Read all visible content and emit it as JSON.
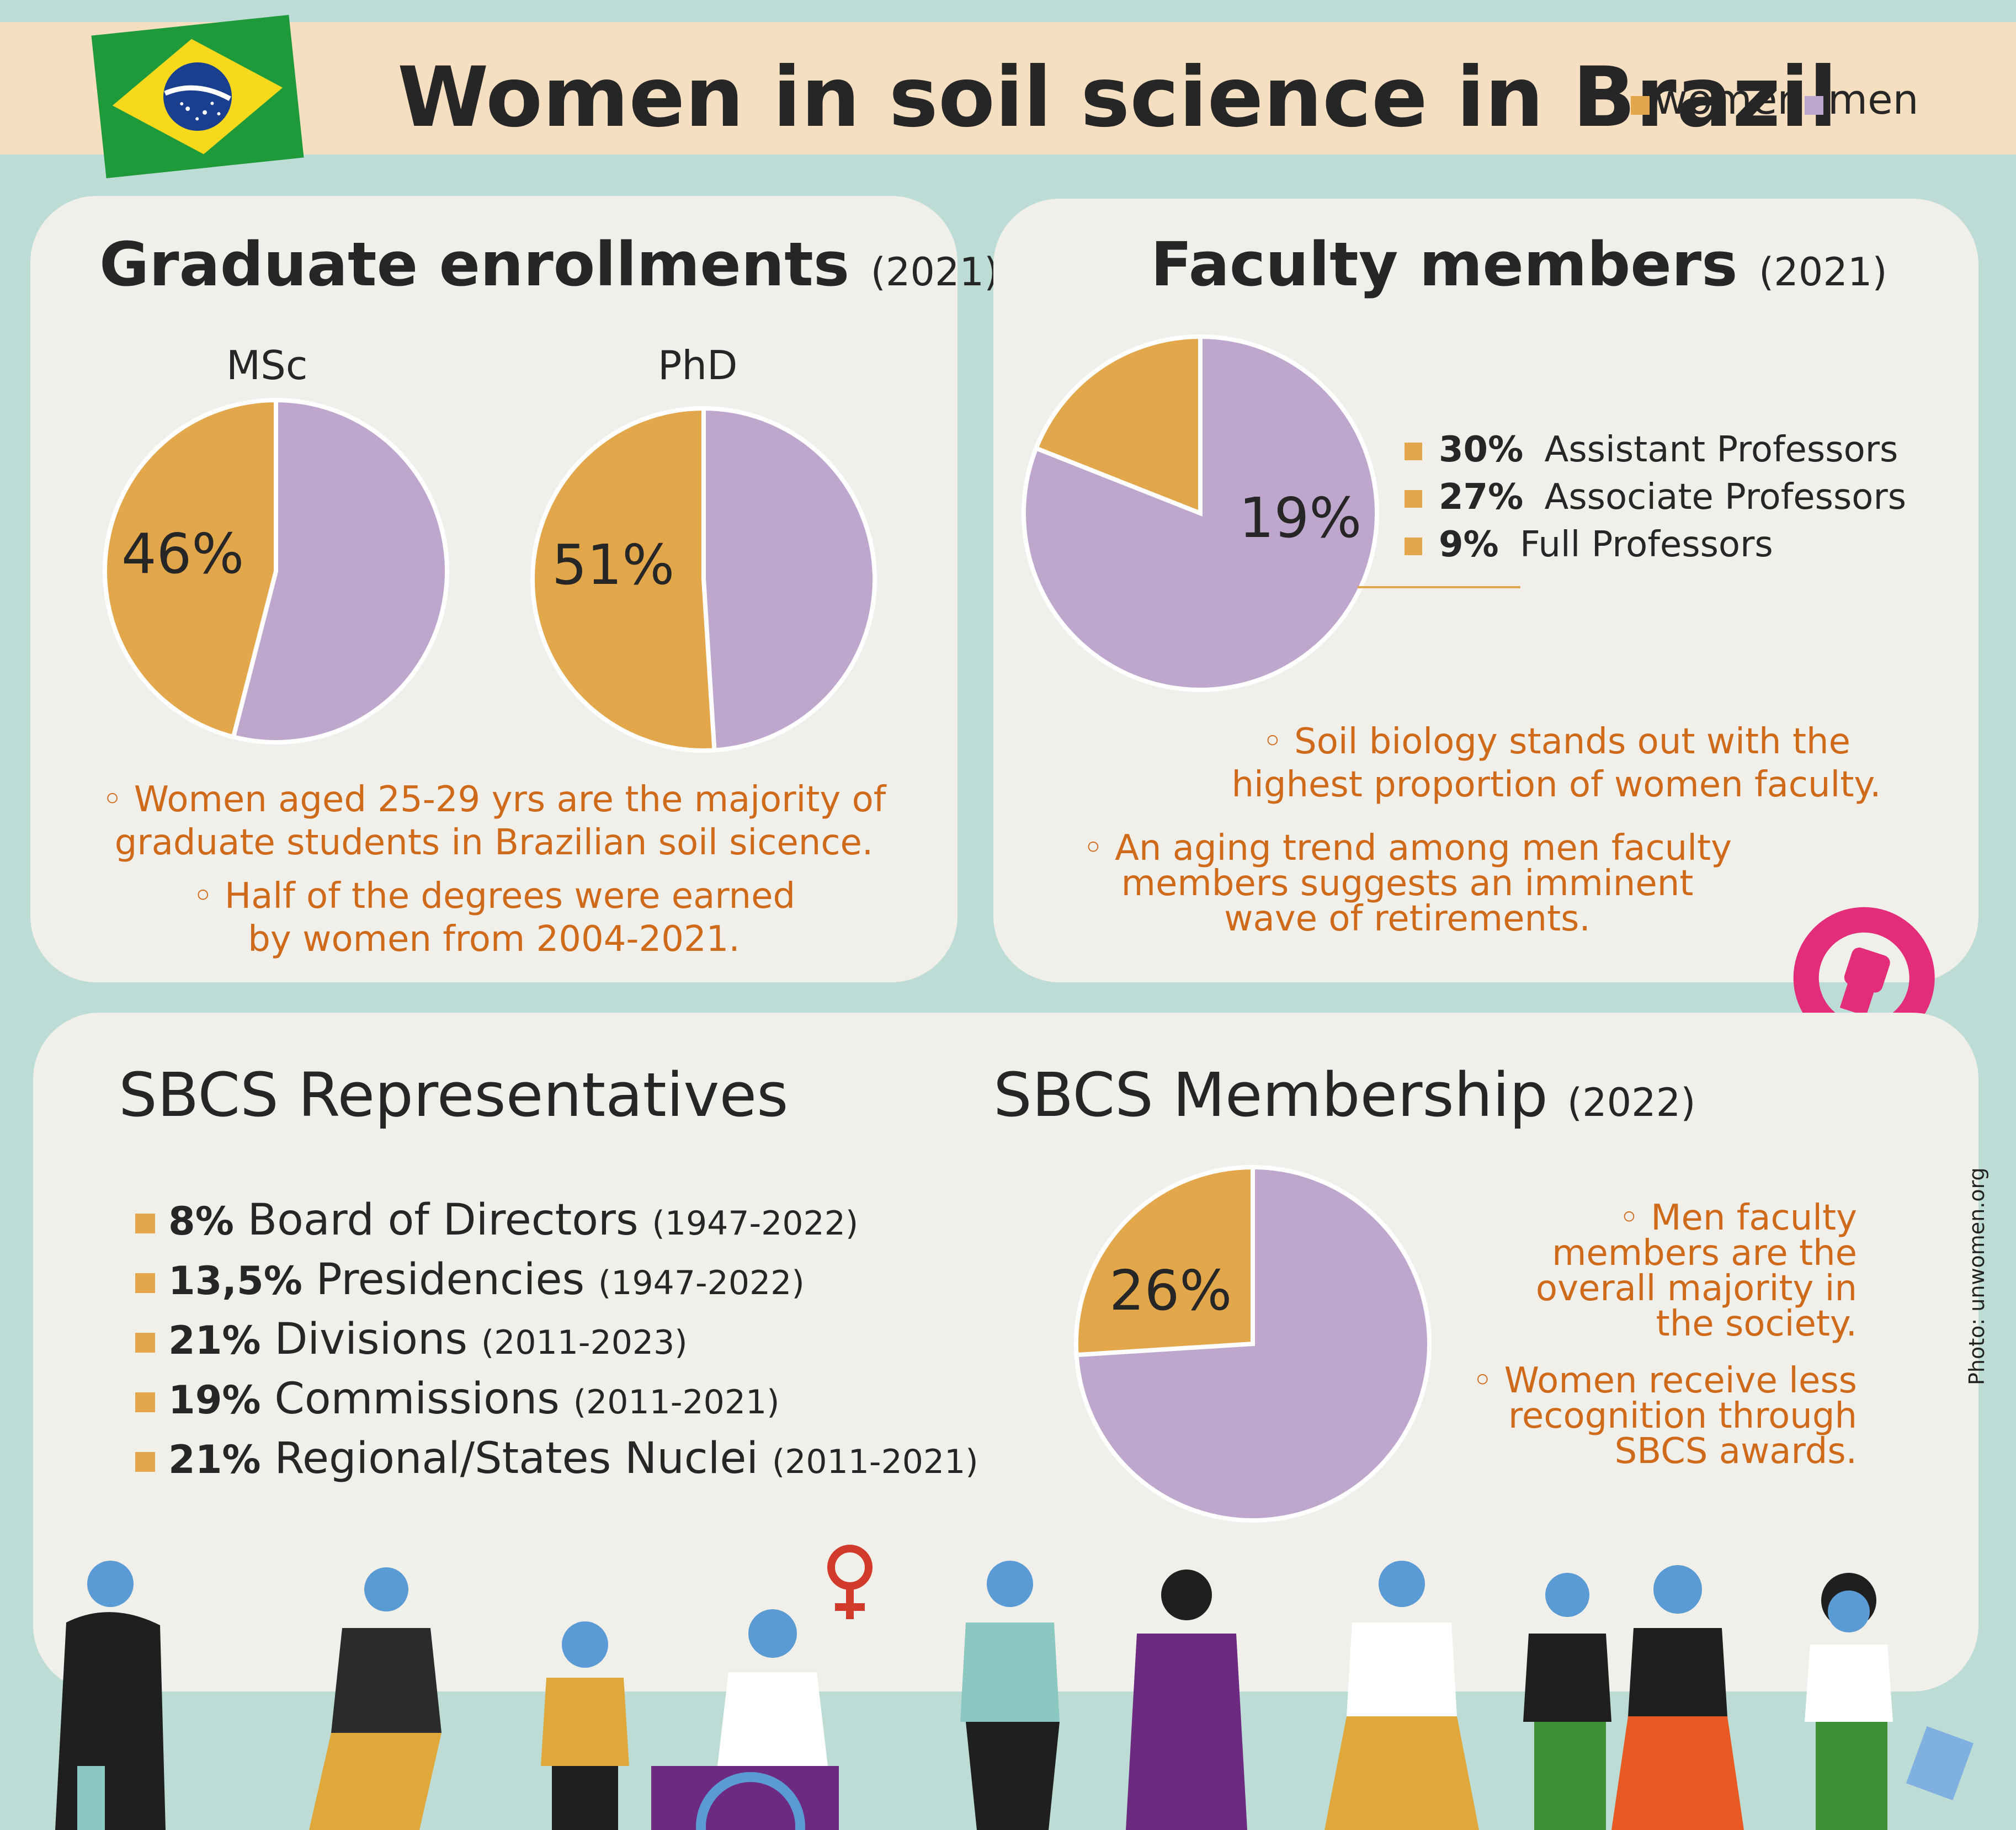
{
  "title": "Women in soil science in Brazil",
  "legend": {
    "women": "women",
    "men": "men"
  },
  "colors": {
    "women": "#e2a74b",
    "men": "#bea6cc",
    "note": "#cf6a1a",
    "background": "#bcdcd5",
    "banner": "#f5dfc0",
    "card": "#f0efe9",
    "venus": "#e32c7a"
  },
  "graduate": {
    "title": "Graduate enrollments",
    "year": "(2021)",
    "msc_label": "MSc",
    "phd_label": "PhD",
    "msc_pct_label": "46%",
    "phd_pct_label": "51%",
    "note1_line1": "◦ Women aged 25-29 yrs are the majority of",
    "note1_line2": "graduate students in Brazilian soil sicence.",
    "note2_line1": "◦ Half of the degrees were earned",
    "note2_line2": "by women from 2004-2021."
  },
  "faculty": {
    "title": "Faculty members",
    "year": "(2021)",
    "pct_label": "19%",
    "breakdown": [
      {
        "pct": "30%",
        "label": "Assistant Professors"
      },
      {
        "pct": "27%",
        "label": "Associate Professors"
      },
      {
        "pct": "9%",
        "label": "Full Professors"
      }
    ],
    "note1_line1": "◦ Soil biology stands out with the",
    "note1_line2": "highest proportion of women faculty.",
    "note2_line1": "◦ An aging trend among men faculty",
    "note2_line2": "members suggests an imminent",
    "note2_line3": "wave of retirements."
  },
  "representatives": {
    "title": "SBCS Representatives",
    "items": [
      {
        "pct": "8%",
        "label": "Board of Directors",
        "years": "(1947-2022)"
      },
      {
        "pct": "13,5%",
        "label": "Presidencies",
        "years": "(1947-2022)"
      },
      {
        "pct": "21%",
        "label": "Divisions",
        "years": "(2011-2023)"
      },
      {
        "pct": "19%",
        "label": "Commissions",
        "years": "(2011-2021)"
      },
      {
        "pct": "21%",
        "label": "Regional/States Nuclei",
        "years": "(2011-2021)"
      }
    ]
  },
  "membership": {
    "title": "SBCS Membership",
    "year": "(2022)",
    "pct_label": "26%",
    "note1_line1": "◦ Men faculty",
    "note1_line2": "members are the",
    "note1_line3": "overall majority in",
    "note1_line4": "the society.",
    "note2_line1": "◦ Women receive less",
    "note2_line2": "recognition through",
    "note2_line3": "SBCS awards."
  },
  "photo_credit": "Photo: unwomen.org",
  "chart_data": [
    {
      "type": "pie",
      "title": "MSc",
      "categories": [
        "women",
        "men"
      ],
      "values": [
        46,
        54
      ]
    },
    {
      "type": "pie",
      "title": "PhD",
      "categories": [
        "women",
        "men"
      ],
      "values": [
        51,
        49
      ]
    },
    {
      "type": "pie",
      "title": "Faculty members (2021)",
      "categories": [
        "women",
        "men"
      ],
      "values": [
        19,
        81
      ]
    },
    {
      "type": "pie",
      "title": "SBCS Membership (2022)",
      "categories": [
        "women",
        "men"
      ],
      "values": [
        26,
        74
      ]
    }
  ]
}
